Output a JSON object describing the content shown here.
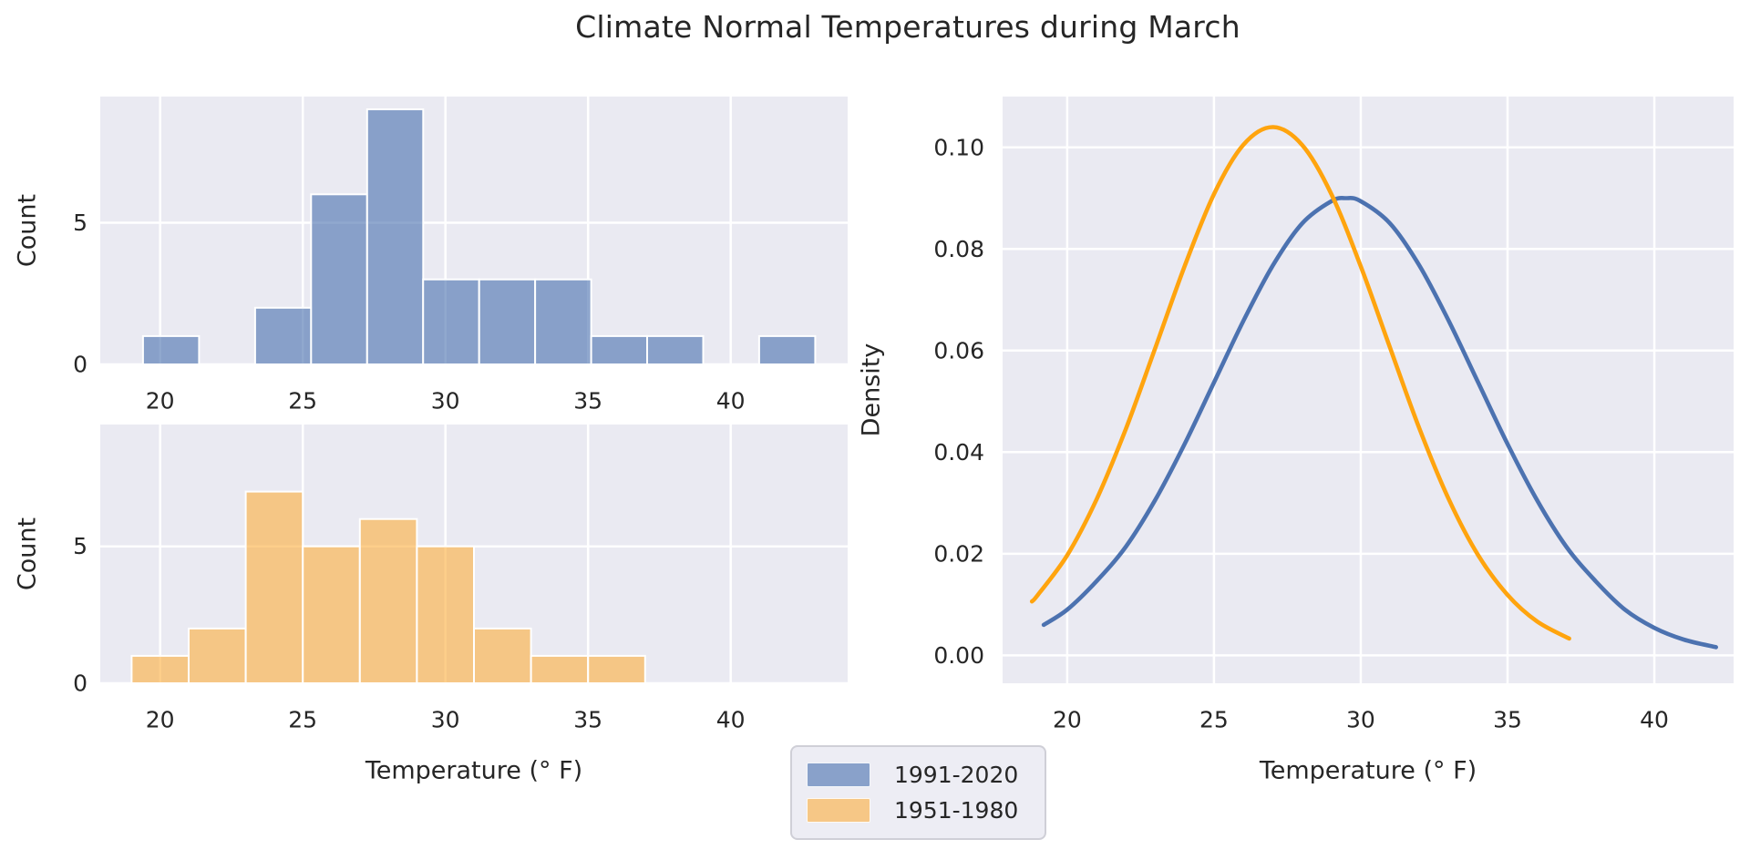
{
  "title": "Climate Normal Temperatures during March",
  "colors": {
    "plot_bg": "#eaeaf2",
    "grid": "#ffffff",
    "text": "#262626",
    "hist_blue": "#4c72b0",
    "hist_orange": "#fbb042",
    "line_blue": "#4c72b0",
    "line_orange": "#ffa40e",
    "legend_bg": "#ededf4",
    "legend_border": "#cfcfd7",
    "hist_fill_opacity": 0.62
  },
  "legend": {
    "items": [
      {
        "label": "1991-2020",
        "color_key": "hist_blue"
      },
      {
        "label": "1951-1980",
        "color_key": "hist_orange"
      }
    ]
  },
  "chart_data": [
    {
      "id": "hist_top",
      "type": "bar",
      "subtype": "histogram",
      "series_name": "1991-2020",
      "color_key": "hist_blue",
      "bin_start": 19.4,
      "bin_width": 1.9635,
      "counts": [
        1,
        0,
        2,
        6,
        9,
        3,
        3,
        3,
        1,
        1,
        0,
        1
      ],
      "xlim": [
        17.9,
        44.1
      ],
      "ylim": [
        0,
        9.45
      ],
      "xticks": [
        20,
        25,
        30,
        35,
        40
      ],
      "xtick_labels": [
        "20",
        "25",
        "30",
        "35",
        "40"
      ],
      "yticks": [
        0,
        5
      ],
      "ytick_labels": [
        "0",
        "5"
      ],
      "xlabel": "",
      "ylabel": "Count",
      "grid": true,
      "legend_position": "none"
    },
    {
      "id": "hist_bottom",
      "type": "bar",
      "subtype": "histogram",
      "series_name": "1951-1980",
      "color_key": "hist_orange",
      "bin_start": 19.0,
      "bin_width": 2.0,
      "counts": [
        1,
        2,
        7,
        5,
        6,
        5,
        2,
        1,
        1
      ],
      "xlim": [
        17.9,
        44.1
      ],
      "ylim": [
        0,
        9.45
      ],
      "xticks": [
        20,
        25,
        30,
        35,
        40
      ],
      "xtick_labels": [
        "20",
        "25",
        "30",
        "35",
        "40"
      ],
      "yticks": [
        0,
        5
      ],
      "ytick_labels": [
        "0",
        "5"
      ],
      "xlabel": "Temperature (° F)",
      "ylabel": "Count",
      "grid": true,
      "legend_position": "none"
    },
    {
      "id": "kde",
      "type": "line",
      "subtype": "kde",
      "xlim": [
        17.8,
        42.7
      ],
      "ylim": [
        -0.0055,
        0.11
      ],
      "xticks": [
        20,
        25,
        30,
        35,
        40
      ],
      "xtick_labels": [
        "20",
        "25",
        "30",
        "35",
        "40"
      ],
      "yticks": [
        0,
        0.02,
        0.04,
        0.06,
        0.08,
        0.1
      ],
      "ytick_labels": [
        "0.00",
        "0.02",
        "0.04",
        "0.06",
        "0.08",
        "0.10"
      ],
      "xlabel": "Temperature (° F)",
      "ylabel": "Density",
      "grid": true,
      "legend_position": "none",
      "series": [
        {
          "name": "1991-2020",
          "color_key": "line_blue",
          "peak": {
            "x": 29.5,
            "y": 0.09
          },
          "points": [
            [
              19.2,
              0.006
            ],
            [
              20,
              0.009
            ],
            [
              21,
              0.0146
            ],
            [
              22,
              0.0214
            ],
            [
              23,
              0.0306
            ],
            [
              24,
              0.0416
            ],
            [
              25,
              0.0537
            ],
            [
              26,
              0.0658
            ],
            [
              27,
              0.0767
            ],
            [
              28,
              0.085
            ],
            [
              29,
              0.0894
            ],
            [
              29.5,
              0.09
            ],
            [
              30,
              0.0894
            ],
            [
              31,
              0.085
            ],
            [
              32,
              0.0767
            ],
            [
              33,
              0.0658
            ],
            [
              34,
              0.0537
            ],
            [
              35,
              0.0416
            ],
            [
              36,
              0.0306
            ],
            [
              37,
              0.0214
            ],
            [
              38,
              0.0146
            ],
            [
              39,
              0.009
            ],
            [
              40,
              0.0054
            ],
            [
              41,
              0.0031
            ],
            [
              42.1,
              0.0016
            ]
          ]
        },
        {
          "name": "1951-1980",
          "color_key": "line_orange",
          "peak": {
            "x": 27.0,
            "y": 0.104
          },
          "points": [
            [
              18.8,
              0.0106
            ],
            [
              19,
              0.0119
            ],
            [
              20,
              0.0197
            ],
            [
              21,
              0.0307
            ],
            [
              22,
              0.0446
            ],
            [
              23,
              0.0605
            ],
            [
              24,
              0.0766
            ],
            [
              25,
              0.0908
            ],
            [
              26,
              0.1005
            ],
            [
              27,
              0.104
            ],
            [
              28,
              0.1005
            ],
            [
              29,
              0.0908
            ],
            [
              30,
              0.0766
            ],
            [
              31,
              0.0605
            ],
            [
              32,
              0.0446
            ],
            [
              33,
              0.0307
            ],
            [
              34,
              0.0197
            ],
            [
              35,
              0.0119
            ],
            [
              36,
              0.0067
            ],
            [
              37.1,
              0.0033
            ]
          ]
        }
      ]
    }
  ]
}
